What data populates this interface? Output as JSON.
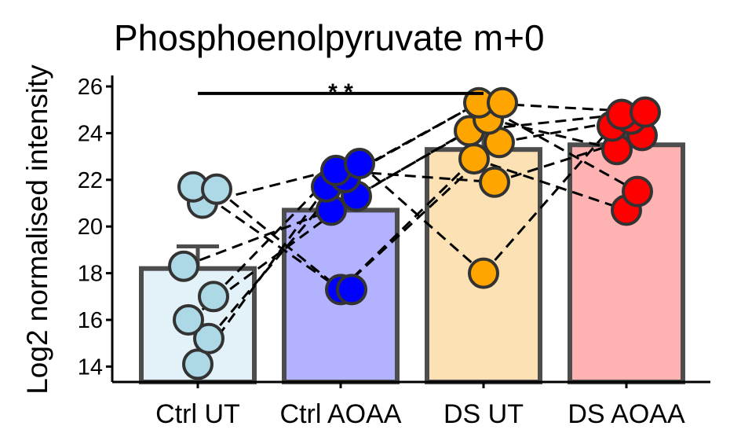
{
  "chart_data": {
    "type": "bar",
    "title": "Phosphoenolpyruvate m+0",
    "xlabel": "",
    "ylabel": "Log2 normalised intensity",
    "ylim": [
      13.5,
      26.3
    ],
    "yticks": [
      14,
      16,
      18,
      20,
      22,
      24,
      26
    ],
    "grid": false,
    "categories": [
      "Ctrl UT",
      "Ctrl AOAA",
      "DS UT",
      "DS AOAA"
    ],
    "values": [
      18.2,
      20.7,
      23.3,
      23.5
    ],
    "errors": [
      0.95,
      0.4,
      0.8,
      0.4
    ],
    "bar_fill": [
      "#e3f1f8",
      "#b2b2ff",
      "#fbe1b4",
      "#ffb2b2"
    ],
    "point_fill": [
      "#add8e6",
      "#0000ff",
      "#ffa500",
      "#ff0000"
    ],
    "points": [
      [
        14.1,
        15.2,
        16.0,
        17.0,
        18.3,
        21.0,
        21.7,
        21.6
      ],
      [
        17.3,
        17.3,
        20.7,
        21.3,
        21.7,
        22.1,
        22.4,
        22.7
      ],
      [
        18.0,
        21.9,
        22.9,
        23.6,
        24.1,
        24.6,
        25.3,
        25.3
      ],
      [
        20.7,
        21.5,
        23.3,
        23.9,
        24.3,
        24.6,
        24.8,
        24.9
      ]
    ],
    "pairs": [
      [
        14.1,
        21.7
      ],
      [
        15.2,
        22.1
      ],
      [
        16.0,
        21.3
      ],
      [
        17.0,
        22.4
      ],
      [
        18.3,
        20.7
      ],
      [
        21.0,
        22.7
      ],
      [
        21.7,
        17.3
      ],
      [
        21.6,
        17.3
      ],
      [
        17.3,
        22.9
      ],
      [
        17.3,
        23.6
      ],
      [
        20.7,
        24.1
      ],
      [
        21.3,
        24.6
      ],
      [
        21.7,
        25.3
      ],
      [
        22.1,
        25.3
      ],
      [
        22.4,
        21.9
      ],
      [
        22.7,
        18.0
      ],
      [
        18.0,
        24.3
      ],
      [
        21.9,
        23.9
      ],
      [
        22.9,
        20.7
      ],
      [
        23.6,
        24.6
      ],
      [
        24.1,
        24.8
      ],
      [
        24.6,
        23.3
      ],
      [
        25.3,
        24.9
      ],
      [
        25.3,
        21.5
      ]
    ],
    "significance": {
      "from": "Ctrl UT",
      "to": "DS UT",
      "label": "* *",
      "y": 25.7
    }
  }
}
